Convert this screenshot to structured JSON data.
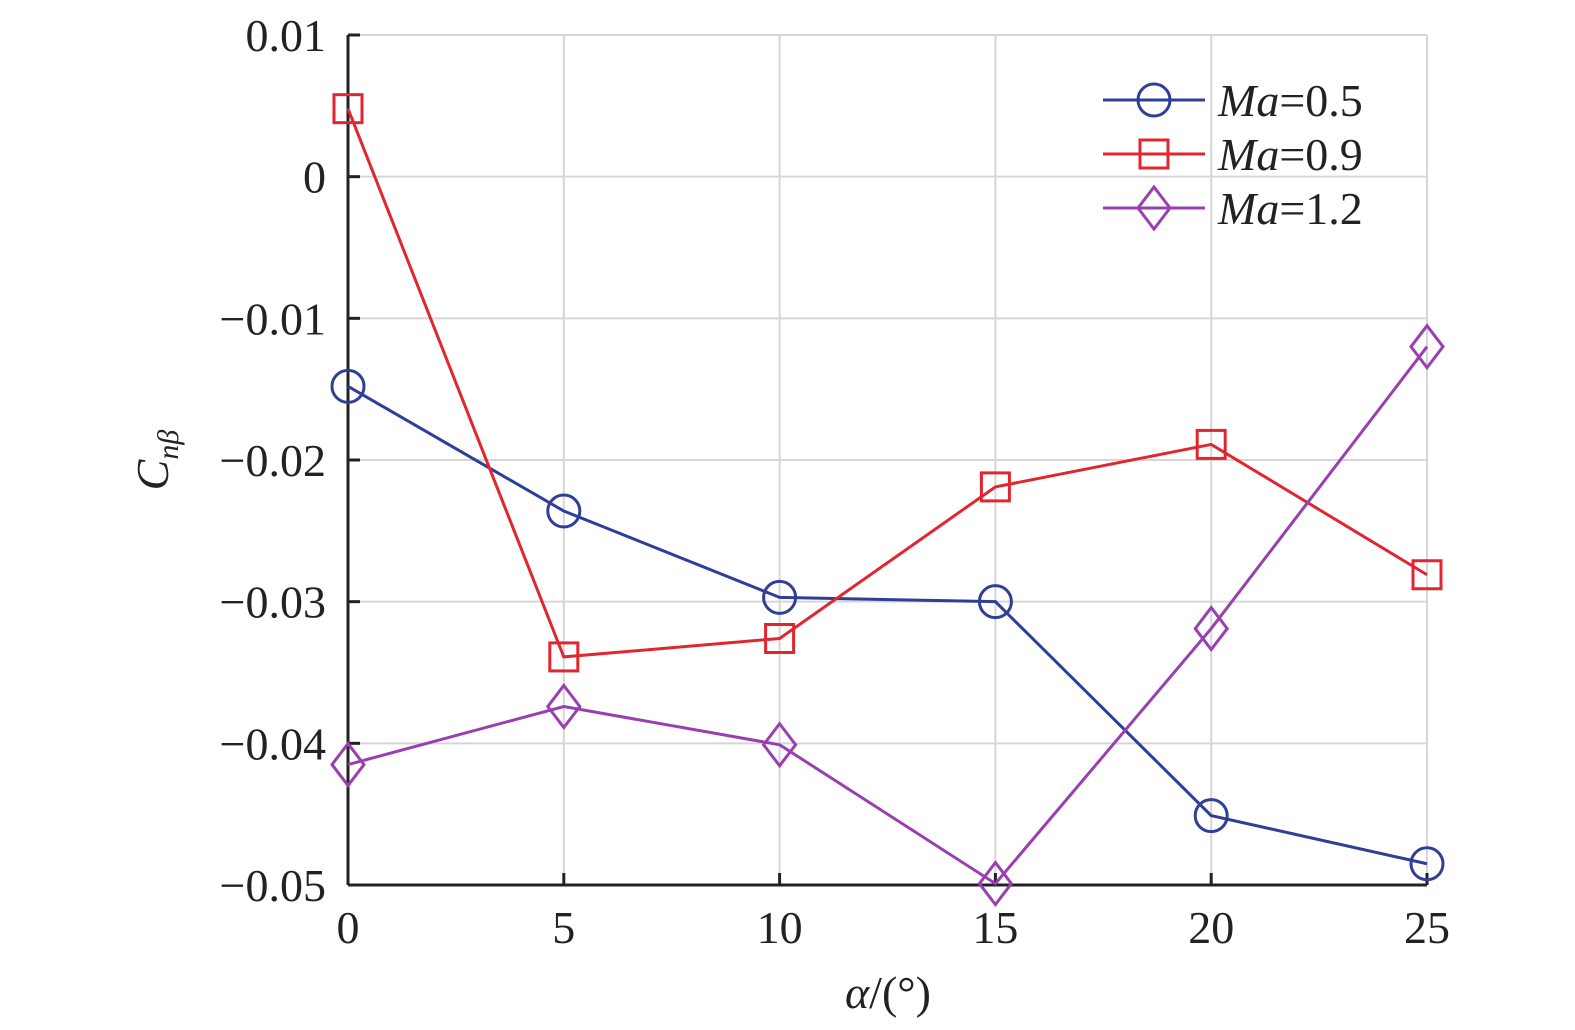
{
  "chart_data": {
    "type": "line",
    "x": [
      0,
      5,
      10,
      15,
      20,
      25
    ],
    "xlim": [
      0,
      25
    ],
    "ylim": [
      -0.05,
      0.01
    ],
    "xticks": [
      0,
      5,
      10,
      15,
      20,
      25
    ],
    "xtick_labels": [
      "0",
      "5",
      "10",
      "15",
      "20",
      "25"
    ],
    "yticks": [
      0.01,
      0,
      -0.01,
      -0.02,
      -0.03,
      -0.04,
      -0.05
    ],
    "ytick_labels": [
      "0.01",
      "0",
      "−0.01",
      "−0.02",
      "−0.03",
      "−0.04",
      "−0.05"
    ],
    "grid": true,
    "legend_position": "top-right",
    "xlabel": {
      "symbol": "α",
      "unit": "/(°)"
    },
    "ylabel": {
      "main": "C",
      "sub": "nβ"
    },
    "series": [
      {
        "name": {
          "italic": "Ma",
          "rest": "=0.5"
        },
        "color": "#2f3f97",
        "marker": "circle",
        "values": [
          -0.0148,
          -0.0236,
          -0.0297,
          -0.03,
          -0.0451,
          -0.0485
        ]
      },
      {
        "name": {
          "italic": "Ma",
          "rest": "=0.9"
        },
        "color": "#e0262e",
        "marker": "square",
        "values": [
          0.0048,
          -0.0339,
          -0.0326,
          -0.0219,
          -0.0189,
          -0.0281
        ]
      },
      {
        "name": {
          "italic": "Ma",
          "rest": "=1.2"
        },
        "color": "#9a3fb0",
        "marker": "diamond",
        "values": [
          -0.0415,
          -0.0374,
          -0.0401,
          -0.0499,
          -0.0319,
          -0.012
        ]
      }
    ]
  }
}
